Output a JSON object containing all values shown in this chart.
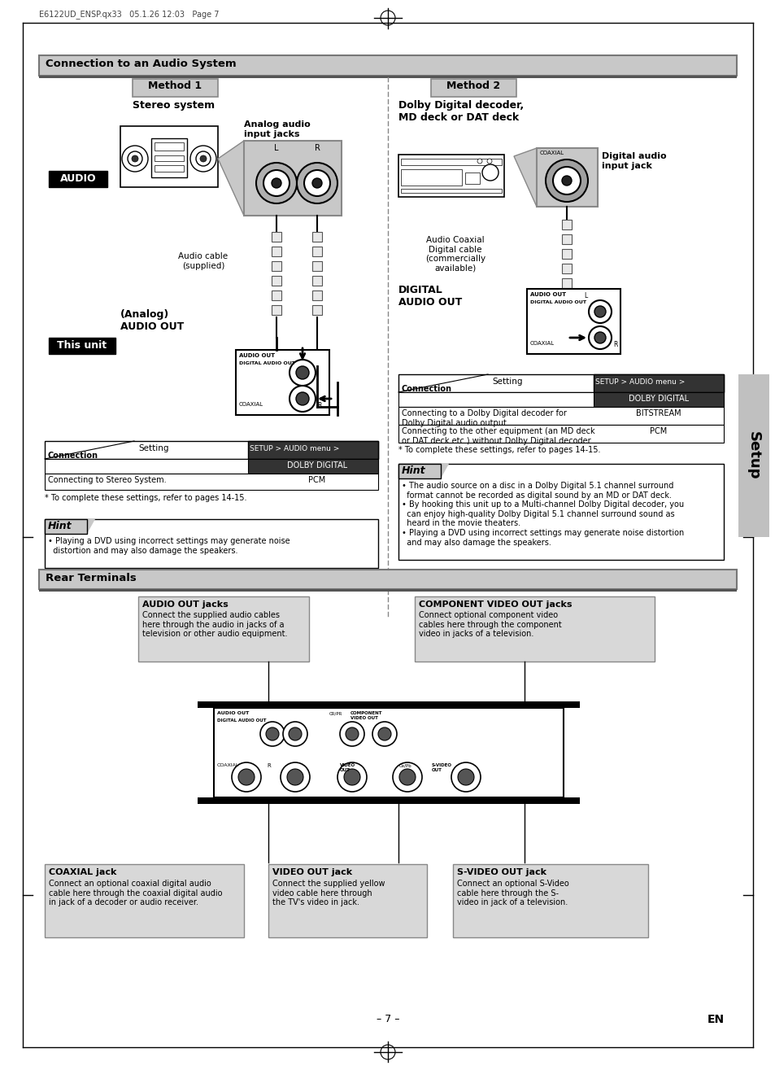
{
  "page_bg": "#ffffff",
  "header_text": "E6122UD_ENSP.qx33   05.1.26 12:03   Page 7",
  "section1_title": "Connection to an Audio System",
  "method1_label": "Method 1",
  "method1_sub": "Stereo system",
  "method2_label": "Method 2",
  "method2_sub": "Dolby Digital decoder,\nMD deck or DAT deck",
  "analog_label": "Analog audio\ninput jacks",
  "digital_label": "Digital audio\ninput jack",
  "audio_label": "AUDIO",
  "this_unit_label": "This unit",
  "analog_audio_out": "(Analog)\nAUDIO OUT",
  "audio_cable_label": "Audio cable\n(supplied)",
  "audio_coaxial_label": "Audio Coaxial\nDigital cable\n(commercially\navailable)",
  "digital_audio_out": "DIGITAL\nAUDIO OUT",
  "hint1_title": "Hint",
  "hint1_text": "• Playing a DVD using incorrect settings may generate noise\n  distortion and may also damage the speakers.",
  "hint2_title": "Hint",
  "hint2_text": "• The audio source on a disc in a Dolby Digital 5.1 channel surround\n  format cannot be recorded as digital sound by an MD or DAT deck.\n• By hooking this unit up to a Multi-channel Dolby Digital decoder, you\n  can enjoy high-quality Dolby Digital 5.1 channel surround sound as\n  heard in the movie theaters.\n• Playing a DVD using incorrect settings may generate noise distortion\n  and may also damage the speakers.",
  "table1_note": "* To complete these settings, refer to pages 14-15.",
  "table2_note": "* To complete these settings, refer to pages 14-15.",
  "table1_row1_conn": "Connecting to Stereo System.",
  "table1_row1_val": "PCM",
  "table2_row1_conn": "Connecting to a Dolby Digital decoder for\nDolby Digital audio output.",
  "table2_row1_val": "BITSTREAM",
  "table2_row2_conn": "Connecting to the other equipment (an MD deck\nor DAT deck etc.) without Dolby Digital decoder.",
  "table2_row2_val": "PCM",
  "section2_title": "Rear Terminals",
  "audio_out_jacks_title": "AUDIO OUT jacks",
  "audio_out_jacks_text": "Connect the supplied audio cables\nhere through the audio in jacks of a\ntelevision or other audio equipment.",
  "component_video_title": "COMPONENT VIDEO OUT jacks",
  "component_video_text": "Connect optional component video\ncables here through the component\nvideo in jacks of a television.",
  "coaxial_title": "COAXIAL jack",
  "coaxial_text": "Connect an optional coaxial digital audio\ncable here through the coaxial digital audio\nin jack of a decoder or audio receiver.",
  "video_out_title": "VIDEO OUT jack",
  "video_out_text": "Connect the supplied yellow\nvideo cable here through\nthe TV's video in jack.",
  "svideo_title": "S-VIDEO OUT jack",
  "svideo_text": "Connect an optional S-Video\ncable here through the S-\nvideo in jack of a television.",
  "setup_sidebar": "Setup",
  "page_num": "– 7 –",
  "en_label": "EN"
}
